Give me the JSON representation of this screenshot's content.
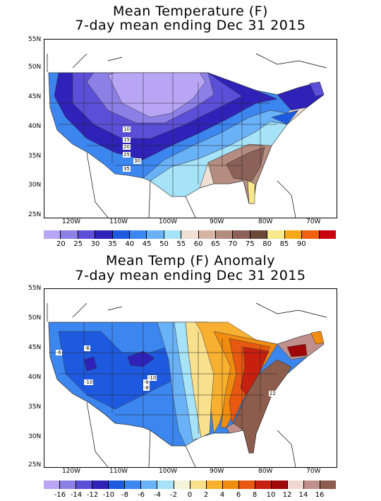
{
  "top_panel": {
    "title_line1": "Mean Temperature (F)",
    "title_line2": "7-day mean ending Dec 31 2015",
    "lat_labels": [
      "55N",
      "50N",
      "45N",
      "40N",
      "35N",
      "30N",
      "25N"
    ],
    "lon_labels": [
      "120W",
      "110W",
      "100W",
      "90W",
      "80W",
      "70W"
    ],
    "contour_labels": [
      "10",
      "15",
      "20",
      "25",
      "30",
      "35"
    ],
    "colorbar": {
      "colors": [
        "#b8a6f5",
        "#8c7fe6",
        "#5b4fd8",
        "#2e22b8",
        "#1e5ae0",
        "#3c86f0",
        "#6ab2f8",
        "#a6e2f8",
        "#f0e0d4",
        "#d8b4a4",
        "#b48c80",
        "#8c6258",
        "#6c4838",
        "#f8ea8c",
        "#f8a818",
        "#f06010",
        "#c80010"
      ],
      "labels": [
        "20",
        "25",
        "30",
        "35",
        "40",
        "45",
        "50",
        "55",
        "60",
        "65",
        "70",
        "75",
        "80",
        "85",
        "90"
      ]
    }
  },
  "bottom_panel": {
    "title_line1": "Mean Temp (F) Anomaly",
    "title_line2": "7-day mean ending Dec 31 2015",
    "lat_labels": [
      "55N",
      "50N",
      "45N",
      "40N",
      "35N",
      "30N",
      "25N"
    ],
    "lon_labels": [
      "120W",
      "110W",
      "100W",
      "90W",
      "80W",
      "70W"
    ],
    "contour_labels": [
      "-6",
      "-6",
      "-10",
      "-8",
      "-8",
      "-10",
      "22"
    ],
    "colorbar": {
      "colors": [
        "#b8a6f5",
        "#8c7fe6",
        "#5b4fd8",
        "#2e22b8",
        "#1e5ae0",
        "#3c86f0",
        "#6ab2f8",
        "#a6e2f8",
        "#f4f4d8",
        "#f8e08c",
        "#f8b030",
        "#f08c10",
        "#e85810",
        "#c82010",
        "#a00808",
        "#f0d8d0",
        "#c0908c",
        "#8c5c4c"
      ],
      "labels": [
        "-16",
        "-14",
        "-12",
        "-10",
        "-8",
        "-6",
        "-4",
        "-2",
        "0",
        "2",
        "4",
        "6",
        "8",
        "10",
        "12",
        "14",
        "16"
      ]
    }
  }
}
